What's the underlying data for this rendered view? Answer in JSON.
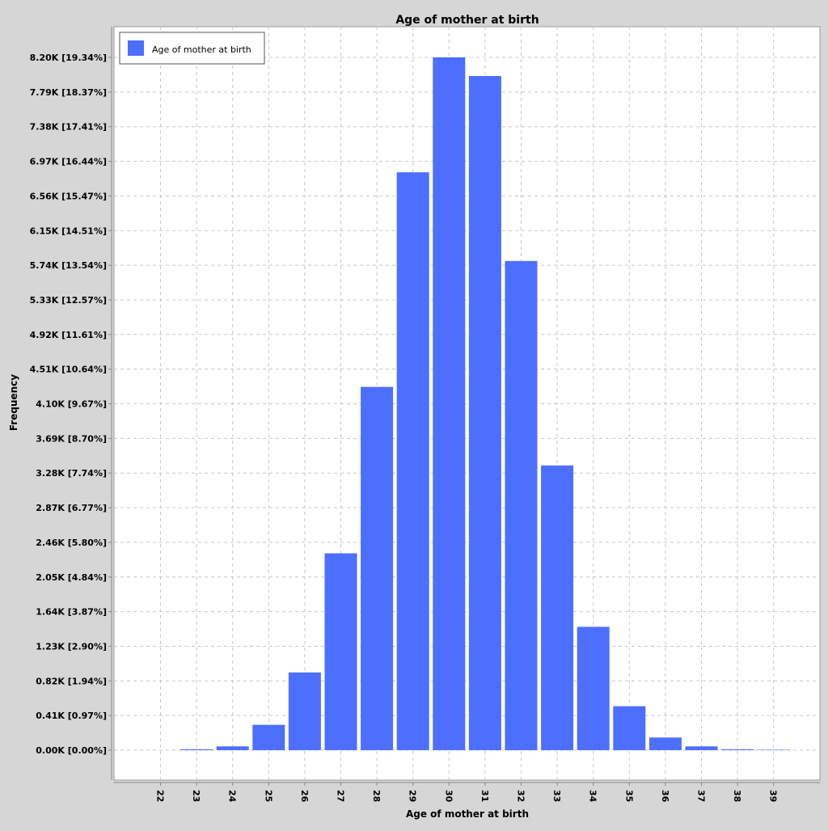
{
  "chart_data": {
    "type": "bar",
    "title": "Age of mother at birth",
    "xlabel": "Age of mother at birth",
    "ylabel": "Frequency",
    "legend": {
      "position": "top-left",
      "entries": [
        "Age of mother at birth"
      ]
    },
    "grid": true,
    "categories": [
      "22",
      "23",
      "24",
      "25",
      "26",
      "27",
      "28",
      "29",
      "30",
      "31",
      "32",
      "33",
      "34",
      "35",
      "36",
      "37",
      "38",
      "39"
    ],
    "series": [
      {
        "name": "Age of mother at birth",
        "color": "#4d6fff",
        "values": [
          0,
          10,
          45,
          300,
          920,
          2330,
          4300,
          6840,
          8200,
          7980,
          5790,
          3370,
          1460,
          520,
          150,
          45,
          10,
          5
        ]
      }
    ],
    "ylim": [
      0,
      8200
    ],
    "yticks": [
      {
        "value": 0,
        "label": "0.00K [0.00%]"
      },
      {
        "value": 410,
        "label": "0.41K [0.97%]"
      },
      {
        "value": 820,
        "label": "0.82K [1.94%]"
      },
      {
        "value": 1230,
        "label": "1.23K [2.90%]"
      },
      {
        "value": 1640,
        "label": "1.64K [3.87%]"
      },
      {
        "value": 2050,
        "label": "2.05K [4.84%]"
      },
      {
        "value": 2460,
        "label": "2.46K [5.80%]"
      },
      {
        "value": 2870,
        "label": "2.87K [6.77%]"
      },
      {
        "value": 3280,
        "label": "3.28K [7.74%]"
      },
      {
        "value": 3690,
        "label": "3.69K [8.70%]"
      },
      {
        "value": 4100,
        "label": "4.10K [9.67%]"
      },
      {
        "value": 4510,
        "label": "4.51K [10.64%]"
      },
      {
        "value": 4920,
        "label": "4.92K [11.61%]"
      },
      {
        "value": 5330,
        "label": "5.33K [12.57%]"
      },
      {
        "value": 5740,
        "label": "5.74K [13.54%]"
      },
      {
        "value": 6150,
        "label": "6.15K [14.51%]"
      },
      {
        "value": 6560,
        "label": "6.56K [15.47%]"
      },
      {
        "value": 6970,
        "label": "6.97K [16.44%]"
      },
      {
        "value": 7380,
        "label": "7.38K [17.41%]"
      },
      {
        "value": 7790,
        "label": "7.79K [18.37%]"
      },
      {
        "value": 8200,
        "label": "8.20K [19.34%]"
      }
    ]
  }
}
